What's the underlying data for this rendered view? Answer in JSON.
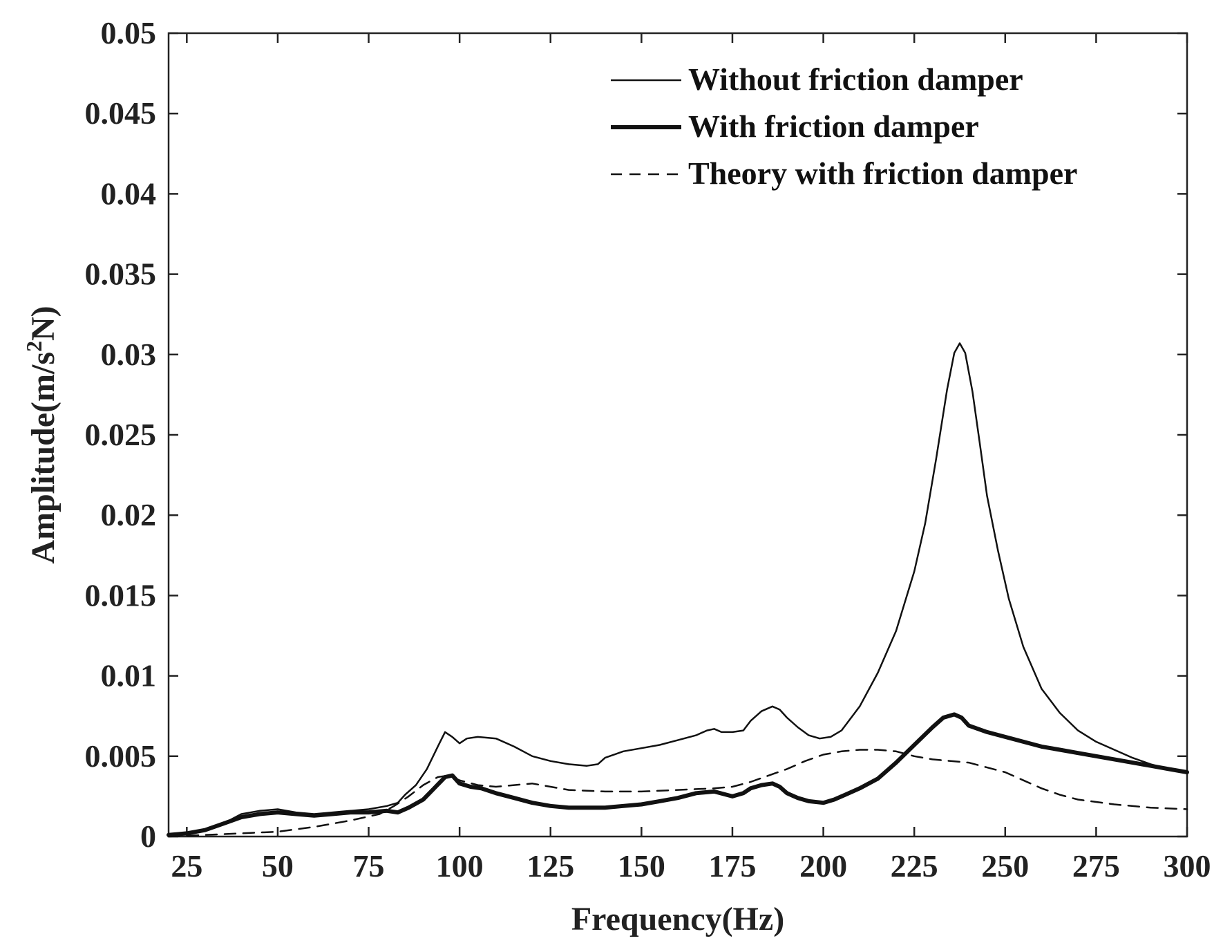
{
  "chart_data": {
    "type": "line",
    "title": "",
    "xlabel": "Frequency(Hz)",
    "ylabel_main": "Amplitude(m/s",
    "ylabel_sup": "2",
    "ylabel_tail": "N)",
    "xlim": [
      20,
      300
    ],
    "ylim": [
      0,
      0.05
    ],
    "xticks": [
      25,
      50,
      75,
      100,
      125,
      150,
      175,
      200,
      225,
      250,
      275,
      300
    ],
    "xtick_labels": [
      "25",
      "50",
      "75",
      "100",
      "125",
      "150",
      "175",
      "200",
      "225",
      "250",
      "275",
      "300"
    ],
    "yticks": [
      0,
      0.005,
      0.01,
      0.015,
      0.02,
      0.025,
      0.03,
      0.035,
      0.04,
      0.045,
      0.05
    ],
    "ytick_labels": [
      "0",
      "0.005",
      "0.01",
      "0.015",
      "0.02",
      "0.025",
      "0.03",
      "0.035",
      "0.04",
      "0.045",
      "0.05"
    ],
    "grid": false,
    "legend_position": "top-right",
    "series": [
      {
        "name": "Without friction damper",
        "style": "thin-solid",
        "color": "#111111",
        "x": [
          20,
          25,
          30,
          35,
          40,
          45,
          50,
          55,
          60,
          65,
          70,
          75,
          80,
          83,
          85,
          88,
          91,
          94,
          96,
          98,
          100,
          102,
          105,
          110,
          115,
          120,
          125,
          130,
          135,
          138,
          140,
          145,
          150,
          155,
          160,
          165,
          168,
          170,
          172,
          175,
          178,
          180,
          183,
          186,
          188,
          190,
          193,
          196,
          199,
          202,
          205,
          210,
          215,
          220,
          225,
          228,
          231,
          234,
          236,
          237.5,
          239,
          241,
          243,
          245,
          248,
          251,
          255,
          260,
          265,
          270,
          275,
          280,
          285,
          290,
          295,
          300
        ],
        "y": [
          0.0001,
          0.0002,
          0.0004,
          0.0008,
          0.0014,
          0.0016,
          0.0017,
          0.0015,
          0.0014,
          0.0015,
          0.0016,
          0.0017,
          0.0019,
          0.0021,
          0.0026,
          0.0032,
          0.0042,
          0.0056,
          0.0065,
          0.0062,
          0.0058,
          0.0061,
          0.0062,
          0.0061,
          0.0056,
          0.005,
          0.0047,
          0.0045,
          0.0044,
          0.0045,
          0.0049,
          0.0053,
          0.0055,
          0.0057,
          0.006,
          0.0063,
          0.0066,
          0.0067,
          0.0065,
          0.0065,
          0.0066,
          0.0072,
          0.0078,
          0.0081,
          0.0079,
          0.0074,
          0.0068,
          0.0063,
          0.0061,
          0.0062,
          0.0066,
          0.0081,
          0.0102,
          0.0128,
          0.0165,
          0.0195,
          0.0235,
          0.0278,
          0.0301,
          0.0307,
          0.0301,
          0.0277,
          0.0245,
          0.0212,
          0.0178,
          0.0148,
          0.0118,
          0.0092,
          0.0077,
          0.0066,
          0.0059,
          0.0054,
          0.0049,
          0.0045,
          0.0042,
          0.004
        ]
      },
      {
        "name": "With friction damper",
        "style": "thick-solid",
        "color": "#111111",
        "x": [
          20,
          25,
          30,
          35,
          40,
          45,
          50,
          55,
          60,
          65,
          70,
          75,
          80,
          83,
          86,
          90,
          93,
          96,
          98,
          100,
          103,
          106,
          110,
          115,
          120,
          125,
          130,
          135,
          140,
          145,
          150,
          155,
          160,
          165,
          170,
          175,
          178,
          180,
          183,
          186,
          188,
          190,
          193,
          196,
          200,
          203,
          206,
          210,
          215,
          220,
          225,
          230,
          233,
          236,
          238,
          240,
          245,
          250,
          255,
          260,
          265,
          270,
          275,
          280,
          285,
          290,
          295,
          300
        ],
        "y": [
          0.0001,
          0.0002,
          0.0004,
          0.0008,
          0.0012,
          0.0014,
          0.0015,
          0.0014,
          0.0013,
          0.0014,
          0.0015,
          0.0015,
          0.0016,
          0.0015,
          0.0018,
          0.0023,
          0.003,
          0.0037,
          0.0038,
          0.0033,
          0.0031,
          0.003,
          0.0027,
          0.0024,
          0.0021,
          0.0019,
          0.0018,
          0.0018,
          0.0018,
          0.0019,
          0.002,
          0.0022,
          0.0024,
          0.0027,
          0.0028,
          0.0025,
          0.0027,
          0.003,
          0.0032,
          0.0033,
          0.0031,
          0.0027,
          0.0024,
          0.0022,
          0.0021,
          0.0023,
          0.0026,
          0.003,
          0.0036,
          0.0046,
          0.0057,
          0.0068,
          0.0074,
          0.0076,
          0.0074,
          0.0069,
          0.0065,
          0.0062,
          0.0059,
          0.0056,
          0.0054,
          0.0052,
          0.005,
          0.0048,
          0.0046,
          0.0044,
          0.0042,
          0.004
        ]
      },
      {
        "name": "Theory with friction damper",
        "style": "dashed",
        "color": "#111111",
        "x": [
          20,
          30,
          40,
          50,
          60,
          70,
          78,
          82,
          86,
          90,
          94,
          97,
          100,
          105,
          110,
          115,
          120,
          125,
          130,
          140,
          150,
          160,
          170,
          175,
          180,
          185,
          190,
          195,
          200,
          205,
          210,
          215,
          220,
          225,
          230,
          235,
          240,
          245,
          250,
          255,
          260,
          265,
          270,
          280,
          290,
          300
        ],
        "y": [
          0.0,
          0.0001,
          0.0002,
          0.0003,
          0.0006,
          0.001,
          0.0014,
          0.0019,
          0.0025,
          0.0032,
          0.0037,
          0.0038,
          0.0035,
          0.0032,
          0.0031,
          0.0032,
          0.0033,
          0.0031,
          0.0029,
          0.0028,
          0.0028,
          0.0029,
          0.003,
          0.0031,
          0.0034,
          0.0038,
          0.0042,
          0.0047,
          0.0051,
          0.0053,
          0.0054,
          0.0054,
          0.0053,
          0.005,
          0.0048,
          0.0047,
          0.0046,
          0.0043,
          0.004,
          0.0035,
          0.003,
          0.0026,
          0.0023,
          0.002,
          0.0018,
          0.0017
        ]
      }
    ]
  }
}
